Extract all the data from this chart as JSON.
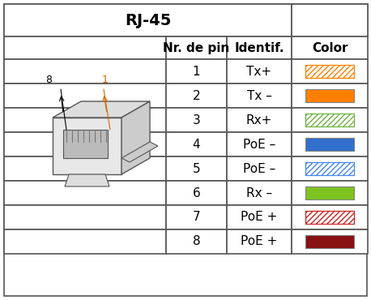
{
  "title": "RJ-45",
  "headers": [
    "Nr. de pin",
    "Identif.",
    "Color"
  ],
  "rows": [
    {
      "pin": "1",
      "identif": "Tx+",
      "color": "#FF8000",
      "hatched": true,
      "hatch_color": "#FF8000",
      "bg": "white"
    },
    {
      "pin": "2",
      "identif": "Tx –",
      "color": "#FF8000",
      "hatched": false,
      "hatch_color": null,
      "bg": "white"
    },
    {
      "pin": "3",
      "identif": "Rx+",
      "color": "#6DB33F",
      "hatched": true,
      "hatch_color": "#6DB33F",
      "bg": "white"
    },
    {
      "pin": "4",
      "identif": "PoE –",
      "color": "#3070CC",
      "hatched": false,
      "hatch_color": null,
      "bg": "white"
    },
    {
      "pin": "5",
      "identif": "PoE –",
      "color": "#4488EE",
      "hatched": true,
      "hatch_color": "#4488EE",
      "bg": "white"
    },
    {
      "pin": "6",
      "identif": "Rx –",
      "color": "#7DC320",
      "hatched": false,
      "hatch_color": null,
      "bg": "white"
    },
    {
      "pin": "7",
      "identif": "PoE +",
      "color": "#CC2222",
      "hatched": true,
      "hatch_color": "#CC2222",
      "bg": "white"
    },
    {
      "pin": "8",
      "identif": "PoE +",
      "color": "#881111",
      "hatched": false,
      "hatch_color": null,
      "bg": "white"
    }
  ],
  "border_color": "#555555",
  "header_bg": "#F0F0F0",
  "bg_color": "#FFFFFF",
  "title_fontsize": 14,
  "body_fontsize": 11
}
